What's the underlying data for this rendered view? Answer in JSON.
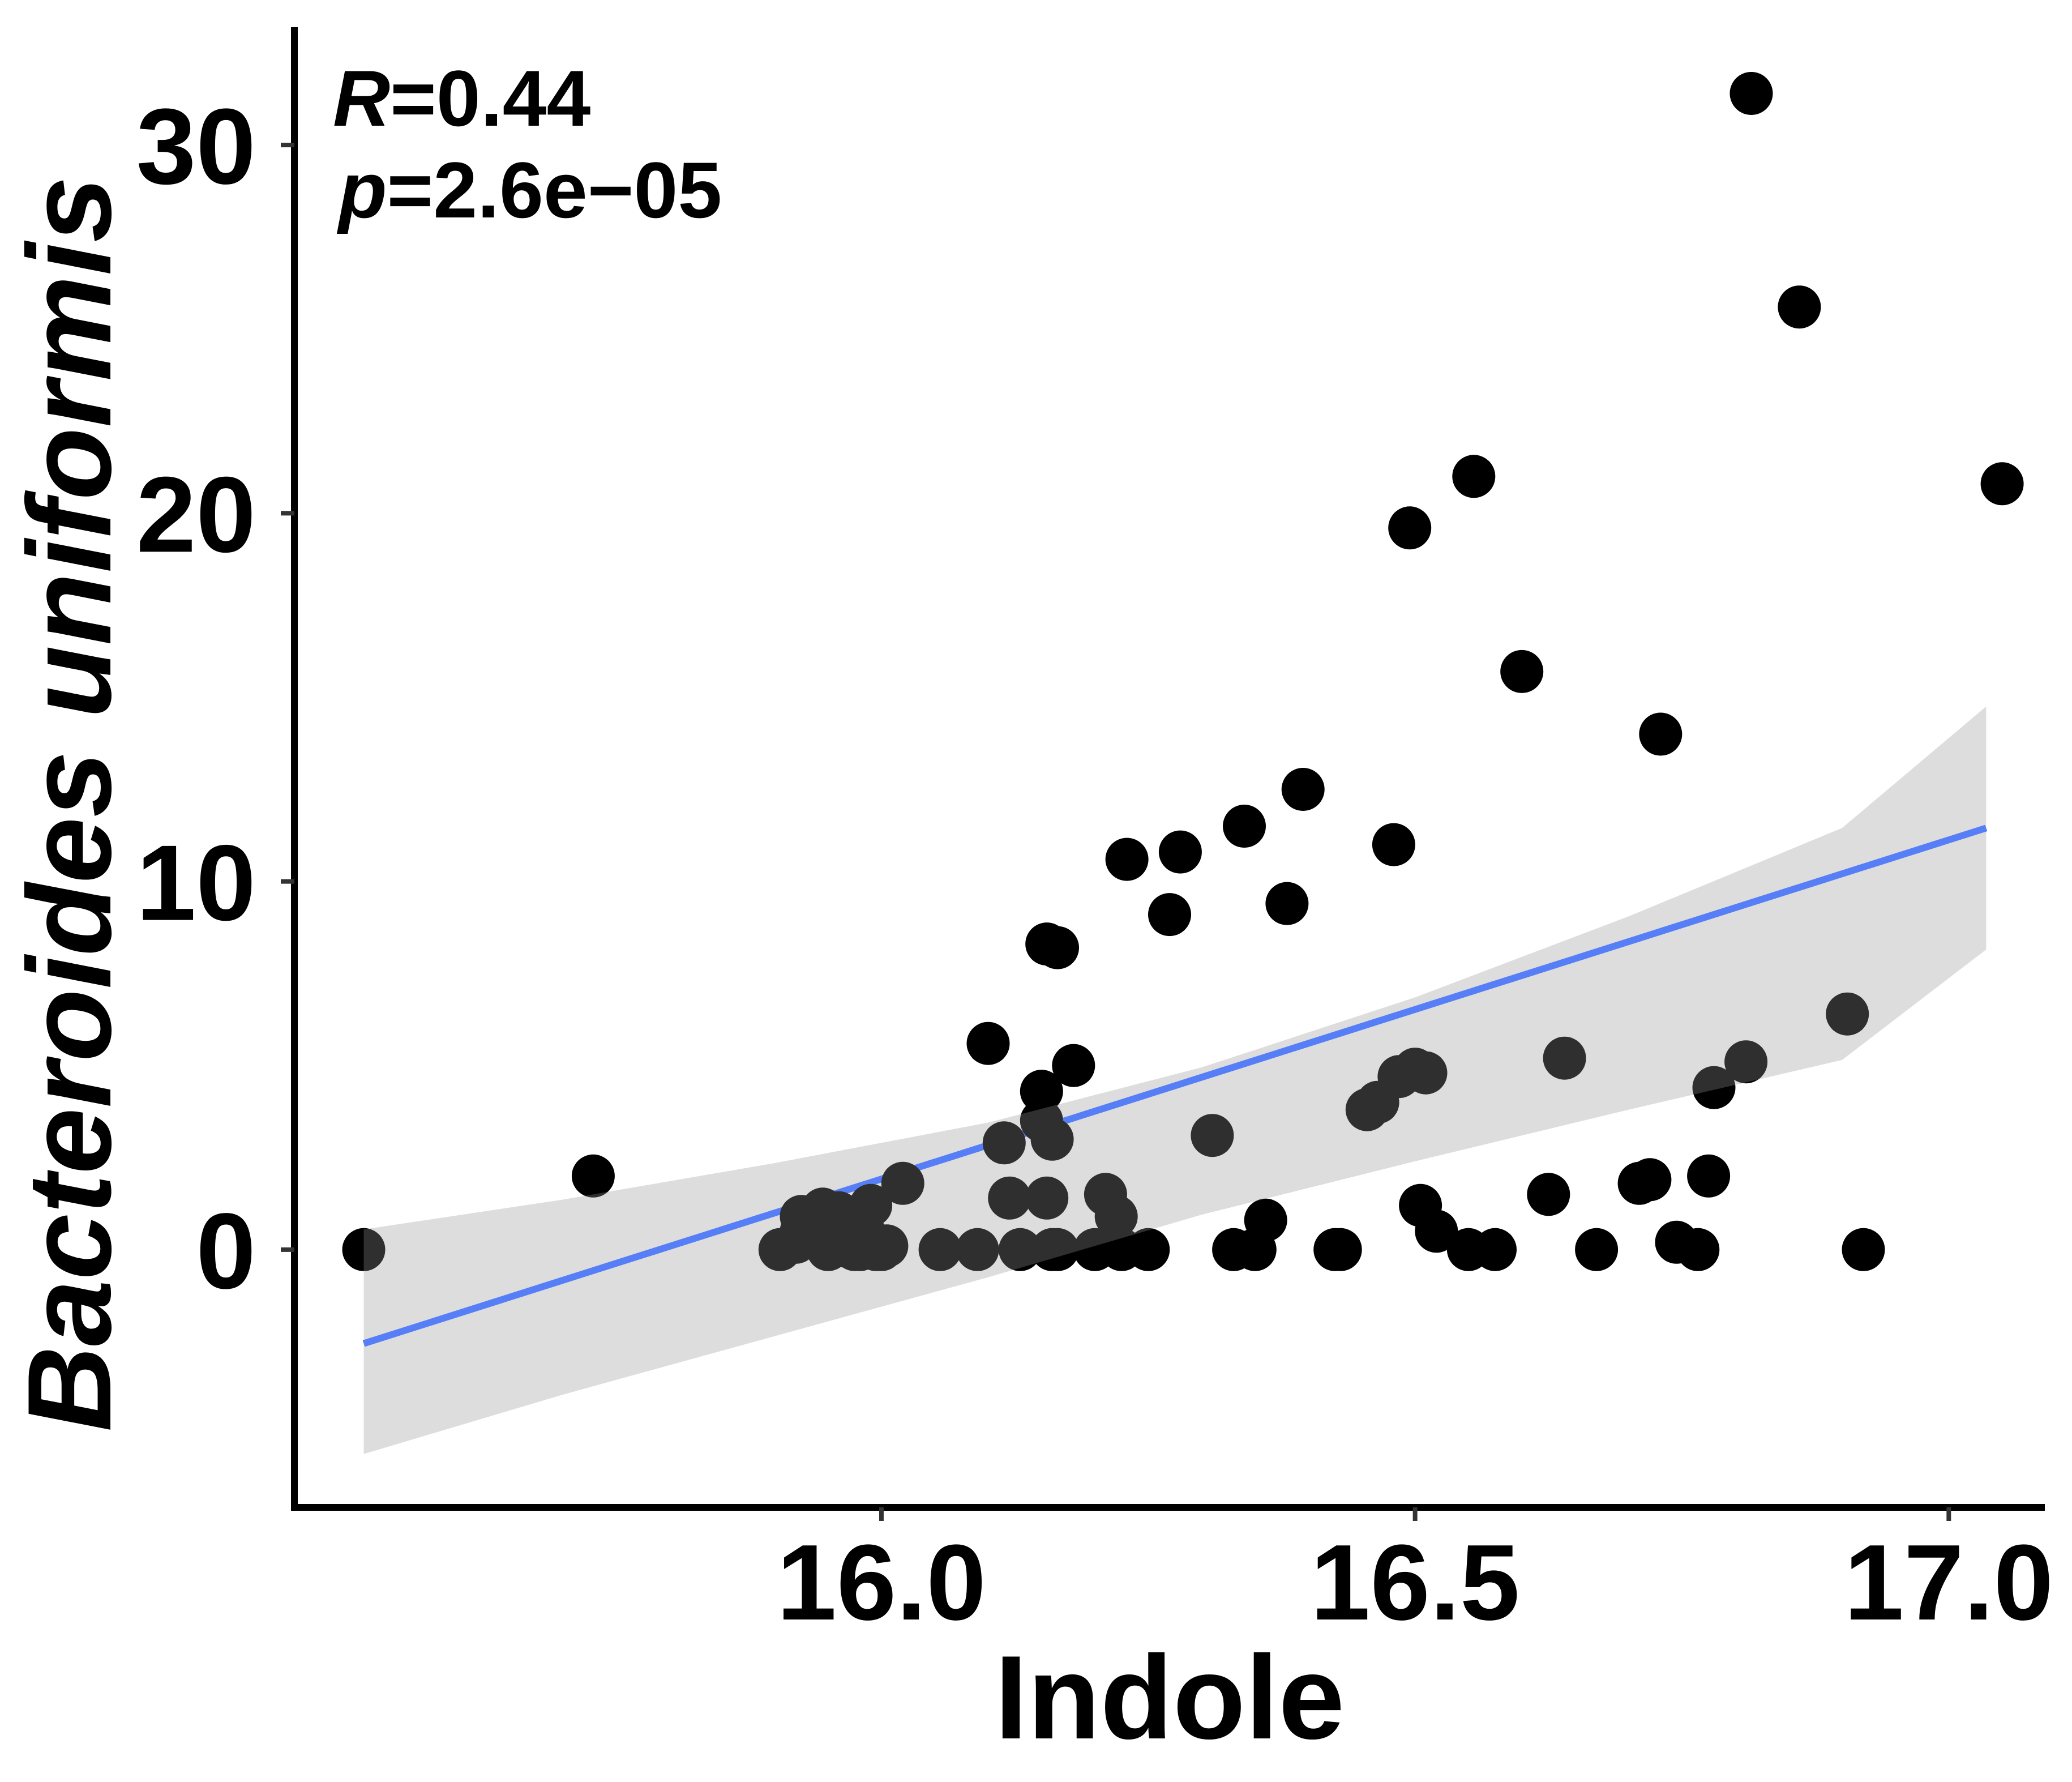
{
  "chart_data": {
    "type": "scatter",
    "xlabel": "Indole",
    "ylabel": "Bacteroides uniformis",
    "annotation": {
      "r_label": "R",
      "r_value": "=0.44",
      "p_label": "p",
      "p_value": "=2.6e−05"
    },
    "xlim": [
      15.45,
      17.09
    ],
    "ylim": [
      -7.0,
      33.2
    ],
    "x_ticks": [
      {
        "value": 16.0,
        "label": "16.0"
      },
      {
        "value": 16.5,
        "label": "16.5"
      },
      {
        "value": 17.0,
        "label": "17.0"
      }
    ],
    "y_ticks": [
      {
        "value": 0,
        "label": "0"
      },
      {
        "value": 10,
        "label": "10"
      },
      {
        "value": 20,
        "label": "20"
      },
      {
        "value": 30,
        "label": "30"
      }
    ],
    "grid": false,
    "legend": "none",
    "colors": {
      "points": "#000000",
      "regression_line": "#3366ff",
      "confidence_band": "#d6d6d6"
    },
    "regression": {
      "x": [
        15.515,
        17.035
      ],
      "y": [
        -2.55,
        11.45
      ]
    },
    "confidence_band": {
      "x": [
        15.515,
        15.7,
        15.9,
        16.1,
        16.3,
        16.5,
        16.7,
        16.9,
        17.035
      ],
      "upper": [
        0.55,
        1.35,
        2.35,
        3.45,
        4.95,
        6.85,
        9.05,
        11.45,
        14.75
      ],
      "lower": [
        -5.55,
        -3.95,
        -2.35,
        -0.75,
        0.95,
        2.4,
        3.8,
        5.15,
        8.15
      ]
    },
    "points": {
      "x": [
        15.515,
        15.73,
        15.905,
        15.92,
        15.925,
        15.925,
        15.945,
        15.95,
        15.955,
        15.96,
        15.965,
        15.97,
        15.975,
        15.98,
        15.985,
        15.99,
        15.995,
        16.0,
        16.005,
        16.02,
        16.055,
        16.09,
        16.1,
        16.115,
        16.12,
        16.13,
        16.15,
        16.15,
        16.155,
        16.155,
        16.16,
        16.16,
        16.165,
        16.165,
        16.18,
        16.2,
        16.21,
        16.22,
        16.225,
        16.23,
        16.25,
        16.27,
        16.28,
        16.31,
        16.33,
        16.34,
        16.35,
        16.36,
        16.38,
        16.395,
        16.425,
        16.43,
        16.455,
        16.465,
        16.48,
        16.485,
        16.495,
        16.5,
        16.505,
        16.51,
        16.52,
        16.55,
        16.555,
        16.575,
        16.6,
        16.625,
        16.64,
        16.67,
        16.71,
        16.72,
        16.73,
        16.745,
        16.765,
        16.775,
        16.78,
        16.81,
        16.815,
        16.86,
        16.905,
        17.05,
        16.92
      ],
      "y": [
        0,
        2.0,
        0.0,
        0.2,
        0.5,
        0.9,
        1.1,
        0.0,
        0.3,
        1.0,
        0.1,
        0.2,
        0.0,
        0.0,
        0.4,
        1.2,
        0.0,
        0.0,
        0.1,
        1.8,
        0.0,
        0.0,
        5.6,
        2.9,
        1.4,
        0.0,
        4.3,
        3.5,
        8.3,
        1.4,
        3.0,
        0.0,
        8.2,
        0.0,
        5.0,
        0.0,
        1.5,
        0.9,
        0.0,
        10.6,
        0.0,
        9.1,
        10.8,
        3.1,
        0.0,
        11.5,
        0.0,
        0.8,
        9.4,
        12.5,
        0.0,
        0.0,
        3.8,
        4.0,
        11.0,
        4.7,
        19.6,
        4.9,
        1.2,
        4.8,
        0.5,
        0.0,
        21.0,
        0.0,
        15.7,
        1.5,
        5.2,
        0.0,
        1.8,
        1.9,
        14.0,
        0.2,
        0.0,
        2.0,
        4.4,
        5.1,
        31.4,
        25.6,
        6.4,
        20.8,
        0.0
      ]
    }
  }
}
